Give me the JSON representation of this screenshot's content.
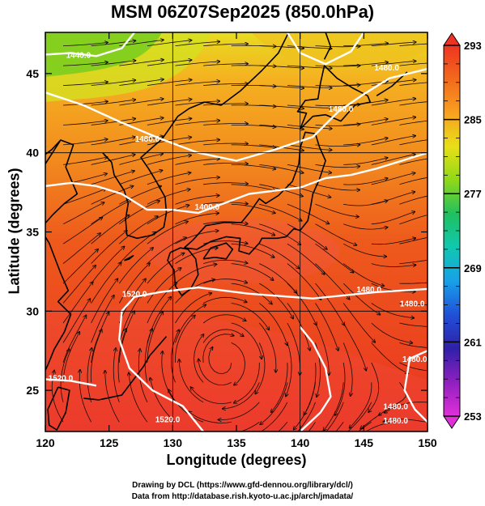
{
  "title": "MSM 06Z07Sep2025 (850.0hPa)",
  "map": {
    "xlabel": "Longitude (degrees)",
    "ylabel": "Latitude  (degrees)",
    "lon_range": [
      120,
      150
    ],
    "lat_range": [
      22.4,
      47.6
    ],
    "lon_ticks": [
      120,
      125,
      130,
      135,
      140,
      145,
      150
    ],
    "lat_ticks": [
      25,
      30,
      35,
      40,
      45
    ],
    "grid_lon": [
      130,
      140
    ],
    "grid_lat": [
      30,
      40
    ],
    "fill_colors": {
      "cold_green": "#7fd020",
      "yellow": "#f0e020",
      "orange": "#f39a1c",
      "orange_red": "#ef6a1a",
      "red": "#ec3522",
      "hot_pink": "#f0586a"
    }
  },
  "contours": [
    {
      "label": "1440.0",
      "label_lon": 122.6,
      "label_lat": 46.0
    },
    {
      "label": "1480.0",
      "label_lon": 128.0,
      "label_lat": 40.7
    },
    {
      "label": "1480.0",
      "label_lon": 143.2,
      "label_lat": 42.6
    },
    {
      "label": "1480.0",
      "label_lon": 146.8,
      "label_lat": 45.2
    },
    {
      "label": "1480.0",
      "label_lon": 145.4,
      "label_lat": 31.2
    },
    {
      "label": "1480.0",
      "label_lon": 148.8,
      "label_lat": 30.3
    },
    {
      "label": "1480.0",
      "label_lon": 149.0,
      "label_lat": 26.8
    },
    {
      "label": "1480.0",
      "label_lon": 147.5,
      "label_lat": 23.8
    },
    {
      "label": "1480.0",
      "label_lon": 147.5,
      "label_lat": 22.9
    },
    {
      "label": "1400.0",
      "label_lon": 132.7,
      "label_lat": 36.4
    },
    {
      "label": "1520.0",
      "label_lon": 127.0,
      "label_lat": 30.9
    },
    {
      "label": "1520.0",
      "label_lon": 129.6,
      "label_lat": 23.0
    },
    {
      "label": "1520.0",
      "label_lon": 121.2,
      "label_lat": 25.6
    }
  ],
  "colorbar": {
    "min": 253,
    "max": 293,
    "tick_labels": [
      "293",
      "285",
      "277",
      "269",
      "261",
      "253"
    ],
    "tick_values": [
      293,
      285,
      277,
      269,
      261,
      253
    ],
    "colors_top_to_bottom": [
      "#ef3322",
      "#f26a1c",
      "#f8a020",
      "#e8e018",
      "#8fd818",
      "#20c060",
      "#10c8b0",
      "#18a0e8",
      "#2050d8",
      "#3020a8",
      "#9020c0",
      "#e030d8"
    ]
  },
  "credits": {
    "line1": "Drawing by DCL (https://www.gfd-dennou.org/library/dcl/)",
    "line2": "Data from http://database.rish.kyoto-u.ac.jp/arch/jmadata/"
  }
}
